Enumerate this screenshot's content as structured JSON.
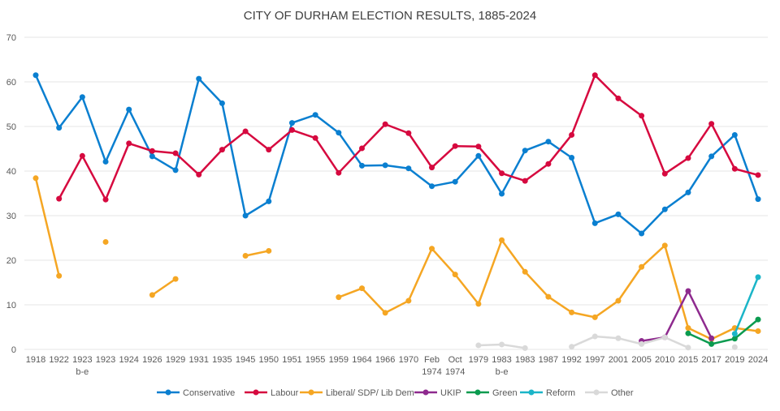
{
  "chart_data": {
    "type": "line",
    "title": "CITY OF DURHAM ELECTION RESULTS, 1885-2024",
    "xlabel": "",
    "ylabel": "",
    "ylim": [
      0,
      70
    ],
    "yticks": [
      0,
      10,
      20,
      30,
      40,
      50,
      60,
      70
    ],
    "grid": true,
    "legend_position": "bottom",
    "categories": [
      "1918",
      "1922",
      "1923\nb-e",
      "1923",
      "1924",
      "1926",
      "1929",
      "1931",
      "1935",
      "1945",
      "1950",
      "1951",
      "1955",
      "1959",
      "1964",
      "1966",
      "1970",
      "Feb\n1974",
      "Oct\n1974",
      "1979",
      "1983\nb-e",
      "1983",
      "1987",
      "1992",
      "1997",
      "2001",
      "2005",
      "2010",
      "2015",
      "2017",
      "2019",
      "2024"
    ],
    "series": [
      {
        "name": "Conservative",
        "color": "#0a7fd0",
        "values": [
          61.5,
          49.7,
          56.6,
          42.1,
          53.8,
          43.3,
          40.2,
          60.7,
          55.2,
          30.0,
          33.2,
          50.8,
          52.6,
          48.6,
          41.2,
          41.3,
          40.6,
          36.6,
          37.6,
          43.4,
          34.9,
          44.6,
          46.6,
          43.0,
          28.3,
          30.3,
          26.0,
          31.4,
          35.2,
          43.3,
          48.1,
          33.7
        ]
      },
      {
        "name": "Labour",
        "color": "#d6093f",
        "values": [
          null,
          33.8,
          43.4,
          33.6,
          46.2,
          44.5,
          44.0,
          39.2,
          44.8,
          48.9,
          44.8,
          49.2,
          47.4,
          39.6,
          45.1,
          50.5,
          48.5,
          40.8,
          45.6,
          45.5,
          39.5,
          37.8,
          41.6,
          48.1,
          61.5,
          56.3,
          52.4,
          39.4,
          42.9,
          50.6,
          40.5,
          39.1
        ]
      },
      {
        "name": "Liberal/ SDP/ Lib  Dem",
        "color": "#f5a623",
        "values": [
          38.4,
          16.5,
          null,
          24.1,
          null,
          12.2,
          15.8,
          null,
          null,
          21.0,
          22.1,
          null,
          null,
          11.7,
          13.7,
          8.2,
          10.9,
          22.6,
          16.8,
          10.2,
          24.5,
          17.4,
          11.8,
          8.3,
          7.2,
          10.9,
          18.5,
          23.3,
          4.8,
          2.3,
          4.8,
          4.1
        ]
      },
      {
        "name": "UKIP",
        "color": "#8e2a8e",
        "values": [
          null,
          null,
          null,
          null,
          null,
          null,
          null,
          null,
          null,
          null,
          null,
          null,
          null,
          null,
          null,
          null,
          null,
          null,
          null,
          null,
          null,
          null,
          null,
          null,
          null,
          null,
          1.9,
          2.7,
          13.1,
          2.5,
          null,
          null
        ]
      },
      {
        "name": "Green",
        "color": "#0a9b4f",
        "values": [
          null,
          null,
          null,
          null,
          null,
          null,
          null,
          null,
          null,
          null,
          null,
          null,
          null,
          null,
          null,
          null,
          null,
          null,
          null,
          null,
          null,
          null,
          null,
          null,
          null,
          null,
          null,
          null,
          3.6,
          1.2,
          2.4,
          6.7
        ]
      },
      {
        "name": "Reform",
        "color": "#1bb5c8",
        "values": [
          null,
          null,
          null,
          null,
          null,
          null,
          null,
          null,
          null,
          null,
          null,
          null,
          null,
          null,
          null,
          null,
          null,
          null,
          null,
          null,
          null,
          null,
          null,
          null,
          null,
          null,
          null,
          null,
          null,
          null,
          3.5,
          16.2
        ]
      },
      {
        "name": "Other",
        "color": "#d9d9d9",
        "values": [
          null,
          null,
          null,
          null,
          null,
          null,
          null,
          null,
          null,
          null,
          null,
          null,
          null,
          null,
          null,
          null,
          null,
          null,
          null,
          0.9,
          1.1,
          0.3,
          null,
          0.6,
          2.9,
          2.5,
          1.2,
          2.7,
          0.4,
          null,
          0.5,
          null
        ]
      }
    ]
  }
}
